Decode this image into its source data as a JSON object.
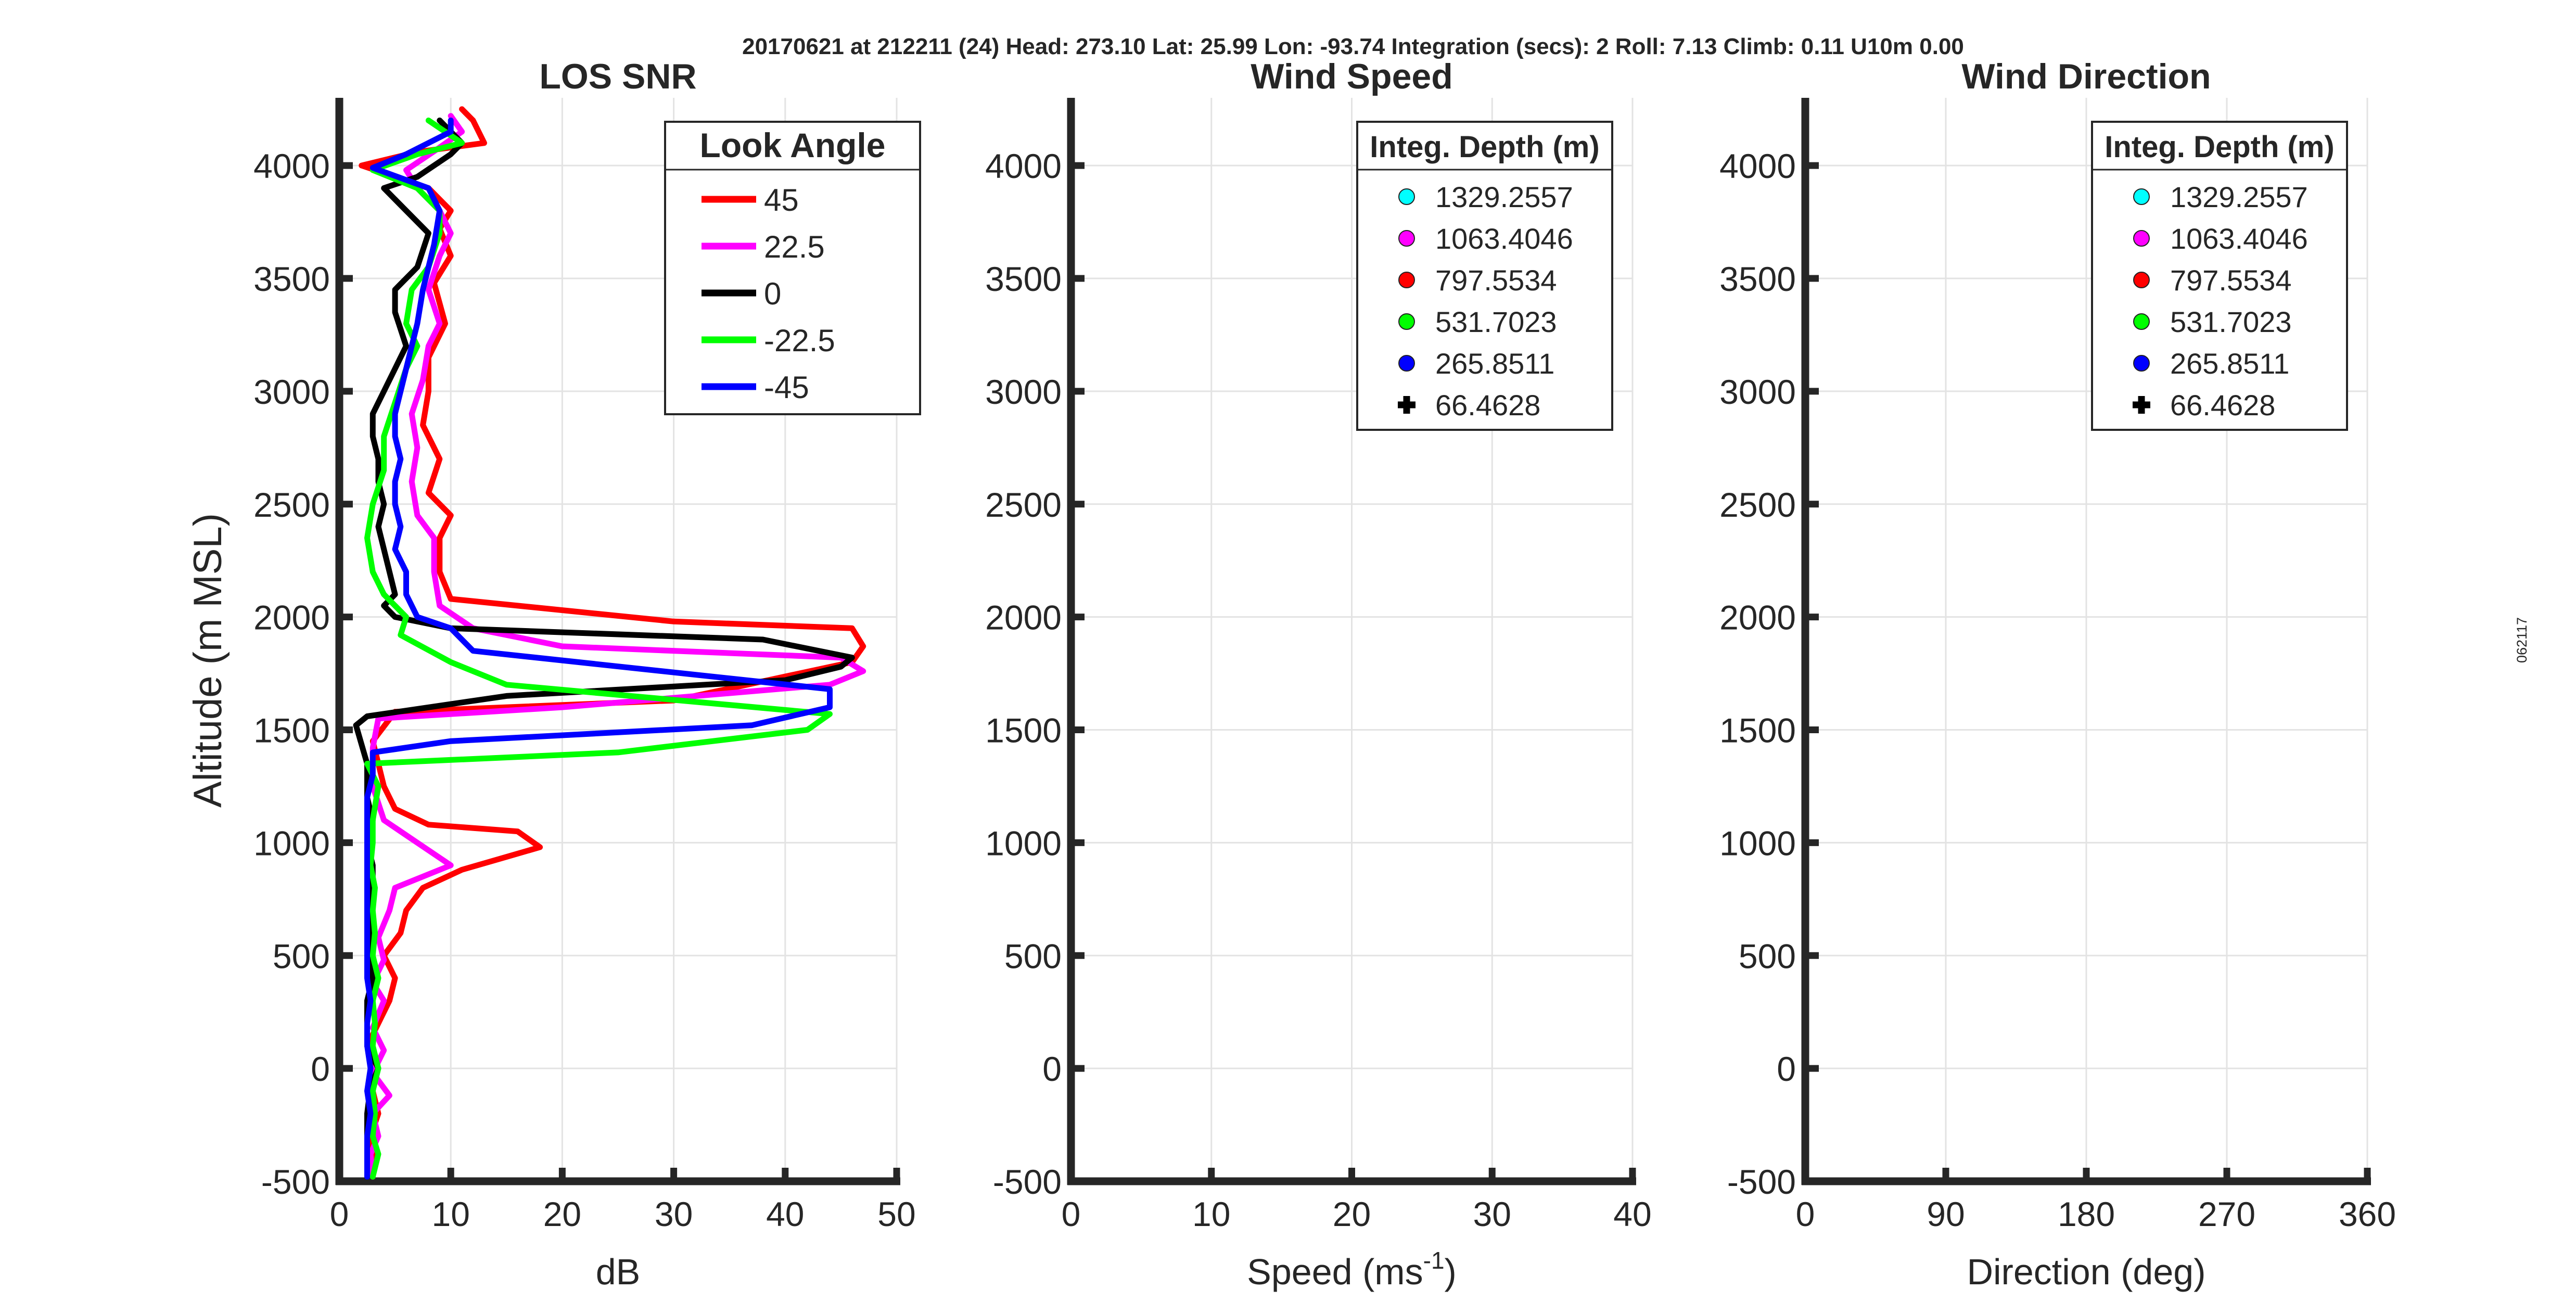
{
  "figure": {
    "header": "20170621 at 212211 (24)  Head: 273.10  Lat: 25.99  Lon: -93.74  Integration (secs): 2  Roll: 7.13  Climb: 0.11  U10m 0.00",
    "side_label": "062117"
  },
  "chart_data": [
    {
      "type": "line",
      "title": "LOS SNR",
      "xlabel": "dB",
      "ylabel": "Altitude (m MSL)",
      "xlim": [
        0,
        50
      ],
      "ylim": [
        -500,
        4300
      ],
      "xticks": [
        0,
        10,
        20,
        30,
        40,
        50
      ],
      "yticks": [
        -500,
        0,
        500,
        1000,
        1500,
        2000,
        2500,
        3000,
        3500,
        4000
      ],
      "grid": true,
      "legend": {
        "title": "Look Angle",
        "placement": "top-right"
      },
      "series": [
        {
          "name": "45",
          "color": "#ff0000",
          "points": [
            [
              3,
              -480
            ],
            [
              3.2,
              -400
            ],
            [
              2.8,
              -300
            ],
            [
              3.5,
              -200
            ],
            [
              3,
              -100
            ],
            [
              3.2,
              0
            ],
            [
              2.5,
              100
            ],
            [
              3.5,
              200
            ],
            [
              4.5,
              300
            ],
            [
              5,
              400
            ],
            [
              4,
              500
            ],
            [
              5.5,
              600
            ],
            [
              6,
              700
            ],
            [
              7.5,
              800
            ],
            [
              11,
              880
            ],
            [
              18,
              980
            ],
            [
              16,
              1050
            ],
            [
              8,
              1080
            ],
            [
              5,
              1150
            ],
            [
              4,
              1250
            ],
            [
              3.5,
              1350
            ],
            [
              3,
              1450
            ],
            [
              5,
              1580
            ],
            [
              30,
              1630
            ],
            [
              46,
              1800
            ],
            [
              47,
              1870
            ],
            [
              46,
              1950
            ],
            [
              30,
              1980
            ],
            [
              10,
              2080
            ],
            [
              9,
              2200
            ],
            [
              9,
              2350
            ],
            [
              10,
              2450
            ],
            [
              8,
              2550
            ],
            [
              9,
              2700
            ],
            [
              7.5,
              2850
            ],
            [
              8,
              3000
            ],
            [
              8,
              3150
            ],
            [
              9.5,
              3300
            ],
            [
              8.5,
              3480
            ],
            [
              10,
              3600
            ],
            [
              9,
              3720
            ],
            [
              10,
              3800
            ],
            [
              8,
              3900
            ],
            [
              2,
              4000
            ],
            [
              7,
              4060
            ],
            [
              13,
              4100
            ],
            [
              12,
              4200
            ],
            [
              11,
              4250
            ]
          ]
        },
        {
          "name": "22.5",
          "color": "#ff00ff",
          "points": [
            [
              3,
              -480
            ],
            [
              2.8,
              -380
            ],
            [
              3.5,
              -300
            ],
            [
              3,
              -200
            ],
            [
              4.5,
              -120
            ],
            [
              3,
              -20
            ],
            [
              4,
              80
            ],
            [
              3,
              180
            ],
            [
              4,
              300
            ],
            [
              3,
              380
            ],
            [
              4,
              480
            ],
            [
              3.5,
              580
            ],
            [
              4.5,
              700
            ],
            [
              5,
              800
            ],
            [
              10,
              900
            ],
            [
              7,
              1000
            ],
            [
              4,
              1100
            ],
            [
              3,
              1250
            ],
            [
              3,
              1420
            ],
            [
              3.5,
              1550
            ],
            [
              20,
              1600
            ],
            [
              44,
              1700
            ],
            [
              47,
              1760
            ],
            [
              45,
              1820
            ],
            [
              20,
              1870
            ],
            [
              12,
              1950
            ],
            [
              9,
              2050
            ],
            [
              8.5,
              2200
            ],
            [
              8.5,
              2350
            ],
            [
              7,
              2450
            ],
            [
              6.5,
              2600
            ],
            [
              7,
              2750
            ],
            [
              6.5,
              2900
            ],
            [
              7.5,
              3050
            ],
            [
              8,
              3200
            ],
            [
              9,
              3300
            ],
            [
              8,
              3450
            ],
            [
              9,
              3600
            ],
            [
              10,
              3700
            ],
            [
              9,
              3800
            ],
            [
              7,
              3900
            ],
            [
              6,
              3980
            ],
            [
              9,
              4080
            ],
            [
              11,
              4150
            ],
            [
              10,
              4220
            ]
          ]
        },
        {
          "name": "0",
          "color": "#000000",
          "points": [
            [
              2.5,
              -480
            ],
            [
              2.5,
              -350
            ],
            [
              2.5,
              -200
            ],
            [
              2.8,
              -80
            ],
            [
              3.5,
              0
            ],
            [
              2.5,
              100
            ],
            [
              2.5,
              200
            ],
            [
              2.5,
              300
            ],
            [
              3,
              400
            ],
            [
              2.5,
              500
            ],
            [
              3,
              600
            ],
            [
              2.5,
              700
            ],
            [
              3,
              800
            ],
            [
              3,
              900
            ],
            [
              2.5,
              1000
            ],
            [
              3,
              1100
            ],
            [
              2.5,
              1200
            ],
            [
              2.5,
              1350
            ],
            [
              1.5,
              1520
            ],
            [
              2.5,
              1560
            ],
            [
              15,
              1650
            ],
            [
              40,
              1720
            ],
            [
              45,
              1780
            ],
            [
              46,
              1820
            ],
            [
              38,
              1900
            ],
            [
              10,
              1950
            ],
            [
              5,
              2000
            ],
            [
              4,
              2050
            ],
            [
              5,
              2100
            ],
            [
              4.5,
              2200
            ],
            [
              4,
              2300
            ],
            [
              3.5,
              2400
            ],
            [
              4,
              2500
            ],
            [
              3.5,
              2600
            ],
            [
              3.5,
              2700
            ],
            [
              3,
              2800
            ],
            [
              3,
              2900
            ],
            [
              4,
              3000
            ],
            [
              5,
              3100
            ],
            [
              6,
              3200
            ],
            [
              5,
              3350
            ],
            [
              5,
              3450
            ],
            [
              7,
              3550
            ],
            [
              8,
              3700
            ],
            [
              6,
              3800
            ],
            [
              4,
              3900
            ],
            [
              7,
              3950
            ],
            [
              10,
              4050
            ],
            [
              11,
              4100
            ],
            [
              9,
              4200
            ]
          ]
        },
        {
          "name": "-22.5",
          "color": "#00ff00",
          "points": [
            [
              3,
              -480
            ],
            [
              3.5,
              -380
            ],
            [
              3,
              -300
            ],
            [
              3.2,
              -200
            ],
            [
              3,
              -100
            ],
            [
              3.5,
              0
            ],
            [
              3,
              100
            ],
            [
              3.2,
              200
            ],
            [
              3,
              300
            ],
            [
              3.5,
              400
            ],
            [
              3,
              500
            ],
            [
              3.2,
              600
            ],
            [
              3,
              700
            ],
            [
              3.2,
              800
            ],
            [
              2.8,
              900
            ],
            [
              3,
              1000
            ],
            [
              3,
              1100
            ],
            [
              3.5,
              1250
            ],
            [
              2.5,
              1350
            ],
            [
              25,
              1400
            ],
            [
              42,
              1500
            ],
            [
              44,
              1570
            ],
            [
              15,
              1700
            ],
            [
              10,
              1800
            ],
            [
              5.5,
              1920
            ],
            [
              6,
              2000
            ],
            [
              4,
              2100
            ],
            [
              3,
              2200
            ],
            [
              2.5,
              2350
            ],
            [
              3,
              2500
            ],
            [
              4,
              2650
            ],
            [
              4,
              2800
            ],
            [
              5,
              2950
            ],
            [
              6,
              3100
            ],
            [
              7,
              3200
            ],
            [
              6,
              3300
            ],
            [
              6.5,
              3450
            ],
            [
              8,
              3550
            ],
            [
              9,
              3700
            ],
            [
              9,
              3800
            ],
            [
              7,
              3900
            ],
            [
              3,
              3980
            ],
            [
              7,
              4050
            ],
            [
              11,
              4100
            ],
            [
              8,
              4200
            ]
          ]
        },
        {
          "name": "-45",
          "color": "#0000ff",
          "points": [
            [
              2.5,
              -480
            ],
            [
              2.5,
              -400
            ],
            [
              2.5,
              -300
            ],
            [
              2.8,
              -200
            ],
            [
              2.5,
              -100
            ],
            [
              2.8,
              0
            ],
            [
              2.5,
              100
            ],
            [
              2.5,
              200
            ],
            [
              2.8,
              300
            ],
            [
              2.5,
              400
            ],
            [
              2.5,
              500
            ],
            [
              2.5,
              600
            ],
            [
              2.5,
              700
            ],
            [
              2.5,
              800
            ],
            [
              2.5,
              900
            ],
            [
              2.5,
              1000
            ],
            [
              2.5,
              1100
            ],
            [
              2.5,
              1200
            ],
            [
              3,
              1300
            ],
            [
              3,
              1400
            ],
            [
              10,
              1450
            ],
            [
              37,
              1520
            ],
            [
              44,
              1600
            ],
            [
              44,
              1680
            ],
            [
              12,
              1850
            ],
            [
              10,
              1950
            ],
            [
              7,
              2000
            ],
            [
              6,
              2100
            ],
            [
              6,
              2200
            ],
            [
              5,
              2300
            ],
            [
              5.5,
              2400
            ],
            [
              5,
              2500
            ],
            [
              5,
              2600
            ],
            [
              5.5,
              2700
            ],
            [
              5,
              2800
            ],
            [
              5,
              2900
            ],
            [
              5.5,
              3000
            ],
            [
              6,
              3100
            ],
            [
              6.5,
              3200
            ],
            [
              7,
              3300
            ],
            [
              7.5,
              3450
            ],
            [
              8,
              3550
            ],
            [
              8.5,
              3650
            ],
            [
              9,
              3800
            ],
            [
              8,
              3900
            ],
            [
              3,
              3990
            ],
            [
              6,
              4050
            ],
            [
              10,
              4150
            ],
            [
              10,
              4200
            ]
          ]
        }
      ]
    },
    {
      "type": "scatter",
      "title": "Wind Speed",
      "xlabel": "Speed (ms",
      "xlabel_sup": "-1",
      "xlabel_tail": ")",
      "xlim": [
        0,
        40
      ],
      "ylim": [
        -500,
        4300
      ],
      "xticks": [
        0,
        10,
        20,
        30,
        40
      ],
      "yticks": [
        -500,
        0,
        500,
        1000,
        1500,
        2000,
        2500,
        3000,
        3500,
        4000
      ],
      "grid": true,
      "legend": {
        "title": "Integ. Depth (m)",
        "placement": "top-right"
      },
      "series": [
        {
          "name": "1329.2557",
          "color": "#00ffff",
          "marker": "circle",
          "points": []
        },
        {
          "name": "1063.4046",
          "color": "#ff00ff",
          "marker": "circle",
          "points": []
        },
        {
          "name": "797.5534",
          "color": "#ff0000",
          "marker": "circle",
          "points": []
        },
        {
          "name": "531.7023",
          "color": "#00ff00",
          "marker": "circle",
          "points": []
        },
        {
          "name": "265.8511",
          "color": "#0000ff",
          "marker": "circle",
          "points": []
        },
        {
          "name": "66.4628",
          "color": "#000000",
          "marker": "plus",
          "points": []
        }
      ]
    },
    {
      "type": "scatter",
      "title": "Wind Direction",
      "xlabel": "Direction (deg)",
      "xlim": [
        0,
        360
      ],
      "ylim": [
        -500,
        4300
      ],
      "xticks": [
        0,
        90,
        180,
        270,
        360
      ],
      "yticks": [
        -500,
        0,
        500,
        1000,
        1500,
        2000,
        2500,
        3000,
        3500,
        4000
      ],
      "grid": true,
      "legend": {
        "title": "Integ. Depth (m)",
        "placement": "top-right"
      },
      "series": [
        {
          "name": "1329.2557",
          "color": "#00ffff",
          "marker": "circle",
          "points": []
        },
        {
          "name": "1063.4046",
          "color": "#ff00ff",
          "marker": "circle",
          "points": []
        },
        {
          "name": "797.5534",
          "color": "#ff0000",
          "marker": "circle",
          "points": []
        },
        {
          "name": "531.7023",
          "color": "#00ff00",
          "marker": "circle",
          "points": []
        },
        {
          "name": "265.8511",
          "color": "#0000ff",
          "marker": "circle",
          "points": []
        },
        {
          "name": "66.4628",
          "color": "#000000",
          "marker": "plus",
          "points": []
        }
      ]
    }
  ]
}
